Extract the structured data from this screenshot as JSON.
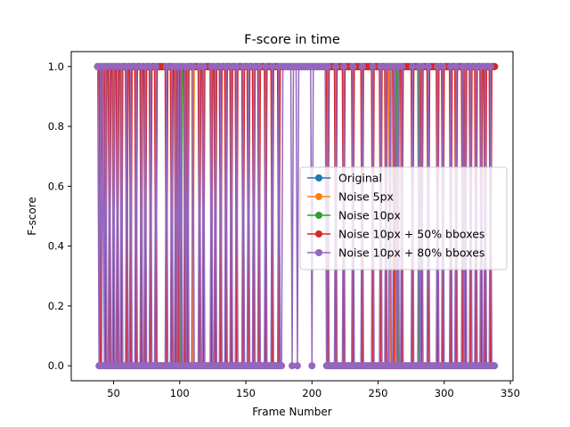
{
  "chart_data": {
    "type": "line",
    "title": "F-score in time",
    "xlabel": "Frame Number",
    "ylabel": "F-score",
    "xlim": [
      18,
      352
    ],
    "ylim": [
      -0.05,
      1.05
    ],
    "xticks": [
      50,
      100,
      150,
      200,
      250,
      300,
      350
    ],
    "yticks": [
      0.0,
      0.2,
      0.4,
      0.6,
      0.8,
      1.0
    ],
    "xtick_labels": [
      "50",
      "100",
      "150",
      "200",
      "250",
      "300",
      "350"
    ],
    "ytick_labels": [
      "0.0",
      "0.2",
      "0.4",
      "0.6",
      "0.8",
      "1.0"
    ],
    "legend_position": "center-right",
    "grid": false,
    "x_start": 38,
    "x_end": 338,
    "series": [
      {
        "name": "Original",
        "color": "#1f77b4",
        "zero_frames": []
      },
      {
        "name": "Noise 5px",
        "color": "#ff7f0e",
        "zero_frames": [
          110,
          259,
          263
        ]
      },
      {
        "name": "Noise 10px",
        "color": "#2ca02c",
        "zero_frames": [
          101,
          265,
          281
        ]
      },
      {
        "name": "Noise 10px + 50% bboxes",
        "color": "#d62728",
        "zero_frames": [
          40,
          44,
          47,
          50,
          53,
          56,
          60,
          63,
          67,
          71,
          74,
          78,
          82,
          90,
          94,
          97,
          99,
          104,
          106,
          115,
          118,
          124,
          127,
          131,
          135,
          139,
          143,
          148,
          152,
          156,
          160,
          165,
          170,
          175,
          212,
          218,
          224,
          231,
          238,
          246,
          252,
          256,
          262,
          268,
          276,
          283,
          288,
          295,
          299,
          305,
          309,
          314,
          316,
          320,
          324,
          328,
          331,
          335
        ]
      },
      {
        "name": "Noise 10px + 80% bboxes",
        "color": "#9467bd",
        "zero_frames": [
          39,
          41,
          43,
          45,
          46,
          48,
          49,
          51,
          52,
          54,
          55,
          57,
          58,
          59,
          61,
          62,
          64,
          65,
          66,
          68,
          69,
          70,
          72,
          73,
          75,
          76,
          77,
          79,
          80,
          81,
          83,
          84,
          85,
          86,
          87,
          88,
          89,
          91,
          92,
          93,
          95,
          96,
          98,
          100,
          102,
          103,
          105,
          107,
          108,
          109,
          111,
          112,
          113,
          114,
          116,
          117,
          119,
          120,
          121,
          122,
          123,
          125,
          126,
          128,
          129,
          130,
          132,
          133,
          134,
          136,
          137,
          138,
          140,
          141,
          142,
          144,
          145,
          146,
          147,
          149,
          150,
          151,
          153,
          154,
          155,
          157,
          158,
          159,
          161,
          162,
          163,
          164,
          166,
          167,
          168,
          169,
          171,
          172,
          173,
          174,
          176,
          177,
          185,
          189,
          200,
          211,
          213,
          214,
          215,
          216,
          217,
          219,
          220,
          221,
          222,
          223,
          225,
          226,
          227,
          228,
          229,
          230,
          232,
          233,
          234,
          235,
          236,
          237,
          239,
          240,
          241,
          242,
          243,
          244,
          245,
          247,
          248,
          249,
          250,
          251,
          253,
          254,
          255,
          257,
          258,
          260,
          261,
          264,
          266,
          267,
          269,
          270,
          271,
          272,
          273,
          274,
          275,
          277,
          278,
          279,
          280,
          282,
          284,
          285,
          286,
          287,
          289,
          290,
          291,
          292,
          293,
          294,
          296,
          297,
          298,
          300,
          301,
          302,
          303,
          304,
          306,
          307,
          308,
          310,
          311,
          312,
          313,
          315,
          317,
          318,
          319,
          321,
          322,
          323,
          325,
          326,
          327,
          329,
          330,
          332,
          333,
          334,
          336,
          337,
          338
        ]
      }
    ]
  }
}
